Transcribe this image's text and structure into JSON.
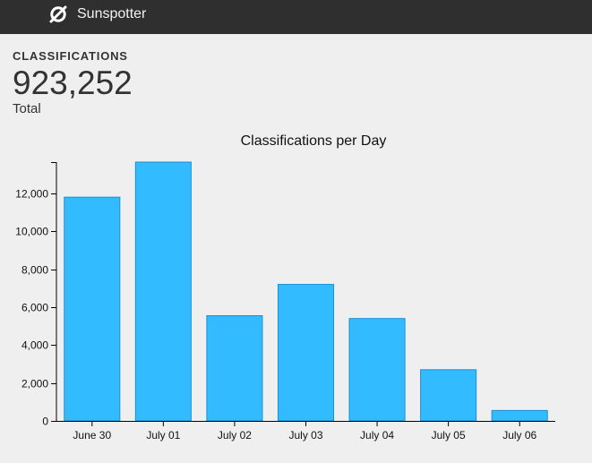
{
  "header": {
    "app_name": "Sunspotter",
    "logo_icon": "sunspotter-logo-icon"
  },
  "stats": {
    "label": "CLASSIFICATIONS",
    "value": "923,252",
    "sublabel": "Total"
  },
  "colors": {
    "bar_fill": "#33bbff",
    "bar_stroke": "#1a8fd6",
    "topbar": "#2f2f2f",
    "background": "#efefef"
  },
  "chart_data": {
    "type": "bar",
    "title": "Classifications per Day",
    "xlabel": "",
    "ylabel": "",
    "categories": [
      "June 30",
      "July 01",
      "July 02",
      "July 03",
      "July 04",
      "July 05",
      "July 06"
    ],
    "values": [
      11800,
      13650,
      5550,
      7200,
      5400,
      2700,
      550
    ],
    "ylim": [
      0,
      13650
    ],
    "yticks": [
      0,
      2000,
      4000,
      6000,
      8000,
      10000,
      12000
    ],
    "ytick_labels": [
      "0",
      "2,000",
      "4,000",
      "6,000",
      "8,000",
      "10,000",
      "12,000"
    ],
    "grid": false,
    "legend": "none"
  }
}
